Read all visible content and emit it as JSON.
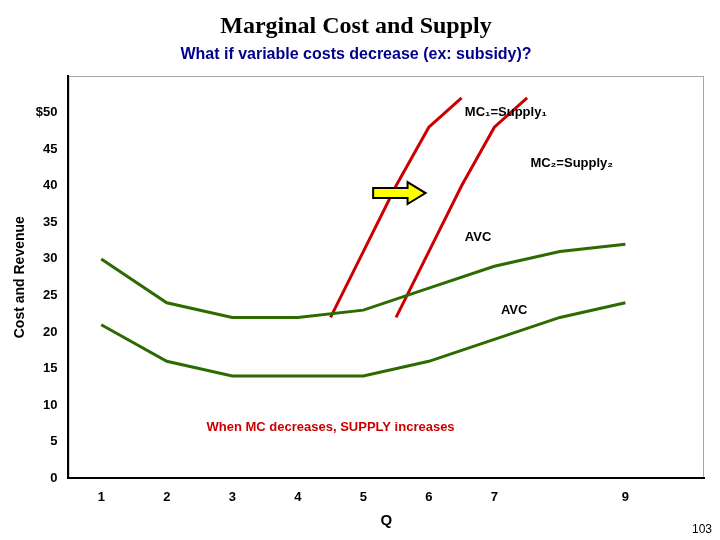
{
  "chart_data": {
    "type": "line",
    "title": "Marginal Cost and Supply",
    "title_color": "#000000",
    "subtitle": "What if variable costs decrease (ex: subsidy)?",
    "subtitle_color": "#00008B",
    "xlabel": "Q",
    "ylabel": "Cost and Revenue",
    "xlim": [
      0.5,
      10.2
    ],
    "xticks": [
      1,
      2,
      3,
      4,
      5,
      6,
      7,
      9
    ],
    "ylim": [
      0,
      55
    ],
    "yticks": [
      0,
      5,
      10,
      15,
      20,
      25,
      30,
      35,
      40,
      45,
      {
        "value": 50,
        "label": "$50"
      }
    ],
    "grid": false,
    "series": [
      {
        "name": "AVC",
        "color": "#2d6a00",
        "x": [
          1,
          2,
          3,
          4,
          5,
          6,
          7,
          8,
          9
        ],
        "values": [
          30,
          24,
          22,
          22,
          23,
          26,
          29,
          31,
          32
        ],
        "label_position": [
          6.55,
          33
        ]
      },
      {
        "name": "AVC",
        "color": "#2d6a00",
        "x": [
          1,
          2,
          3,
          4,
          5,
          6,
          7,
          8,
          9
        ],
        "values": [
          21,
          16,
          14,
          14,
          14,
          16,
          19,
          22,
          24
        ],
        "label_position": [
          7.1,
          23
        ]
      },
      {
        "name": "MC₁=Supply₁",
        "color": "#CC0000",
        "x": [
          4.5,
          5.0,
          5.5,
          6.0,
          6.5
        ],
        "values": [
          22,
          31,
          40,
          48,
          52
        ],
        "label_position": [
          6.55,
          50
        ]
      },
      {
        "name": "MC₂=Supply₂",
        "color": "#CC0000",
        "x": [
          5.5,
          6.0,
          6.5,
          7.0,
          7.5
        ],
        "values": [
          22,
          31,
          40,
          48,
          52
        ],
        "label_position": [
          7.55,
          43
        ]
      }
    ],
    "arrow": {
      "from": [
        5.15,
        39
      ],
      "to": [
        5.95,
        39
      ],
      "color": "yellow"
    },
    "annotations": [
      {
        "text": "When MC decreases, SUPPLY increases",
        "x": 4.5,
        "y": 7,
        "color": "#CC0000"
      }
    ],
    "page_number": "103"
  }
}
